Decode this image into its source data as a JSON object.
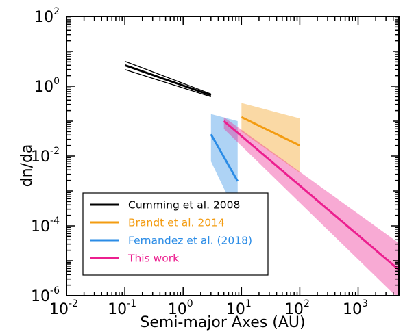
{
  "chart_data": {
    "type": "line",
    "title": "",
    "xlabel": "Semi-major Axes (AU)",
    "ylabel": "dn/da",
    "x_scale": "log",
    "y_scale": "log",
    "xlim": [
      0.01,
      5000
    ],
    "ylim": [
      1e-06,
      100
    ],
    "x_ticks": [
      {
        "base": "10",
        "exp": "-2",
        "value": 0.01
      },
      {
        "base": "10",
        "exp": "-1",
        "value": 0.1
      },
      {
        "base": "10",
        "exp": "0",
        "value": 1
      },
      {
        "base": "10",
        "exp": "1",
        "value": 10
      },
      {
        "base": "10",
        "exp": "2",
        "value": 100
      },
      {
        "base": "10",
        "exp": "3",
        "value": 1000
      }
    ],
    "y_ticks": [
      {
        "base": "10",
        "exp": "-6",
        "value": 1e-06
      },
      {
        "base": "10",
        "exp": "-4",
        "value": 0.0001
      },
      {
        "base": "10",
        "exp": "-2",
        "value": 0.01
      },
      {
        "base": "10",
        "exp": "0",
        "value": 1
      },
      {
        "base": "10",
        "exp": "2",
        "value": 100
      }
    ],
    "grid": false,
    "legend_position": "lower-left",
    "series": [
      {
        "name": "Cumming et al. 2008",
        "color": "#000000",
        "line": {
          "x": [
            0.1,
            3.0
          ],
          "y": [
            4.0,
            0.55
          ]
        },
        "band": {
          "x": [
            0.1,
            3.0
          ],
          "upper": [
            5.2,
            0.6
          ],
          "lower": [
            3.0,
            0.5
          ]
        }
      },
      {
        "name": "Brandt et al. 2014",
        "color": "#f39c12",
        "line": {
          "x": [
            10,
            100
          ],
          "y": [
            0.13,
            0.02
          ]
        },
        "band": {
          "x": [
            10,
            100
          ],
          "upper": [
            0.33,
            0.12
          ],
          "lower": [
            0.05,
            0.0033
          ]
        }
      },
      {
        "name": "Fernandez et al. (2018)",
        "color": "#2b8ce6",
        "line": {
          "x": [
            3.0,
            8.6
          ],
          "y": [
            0.042,
            0.0019
          ]
        },
        "band": {
          "x": [
            3.0,
            8.6
          ],
          "upper": [
            0.16,
            0.1
          ],
          "lower": [
            0.007,
            0.00018
          ]
        }
      },
      {
        "name": "This work",
        "color": "#ec1f8f",
        "line": {
          "x": [
            5,
            5000
          ],
          "y": [
            0.1,
            5.5e-06
          ]
        },
        "band": {
          "x": [
            5,
            5000
          ],
          "upper": [
            0.13,
            3.2e-05
          ],
          "lower": [
            0.06,
            8e-07
          ]
        }
      }
    ]
  }
}
